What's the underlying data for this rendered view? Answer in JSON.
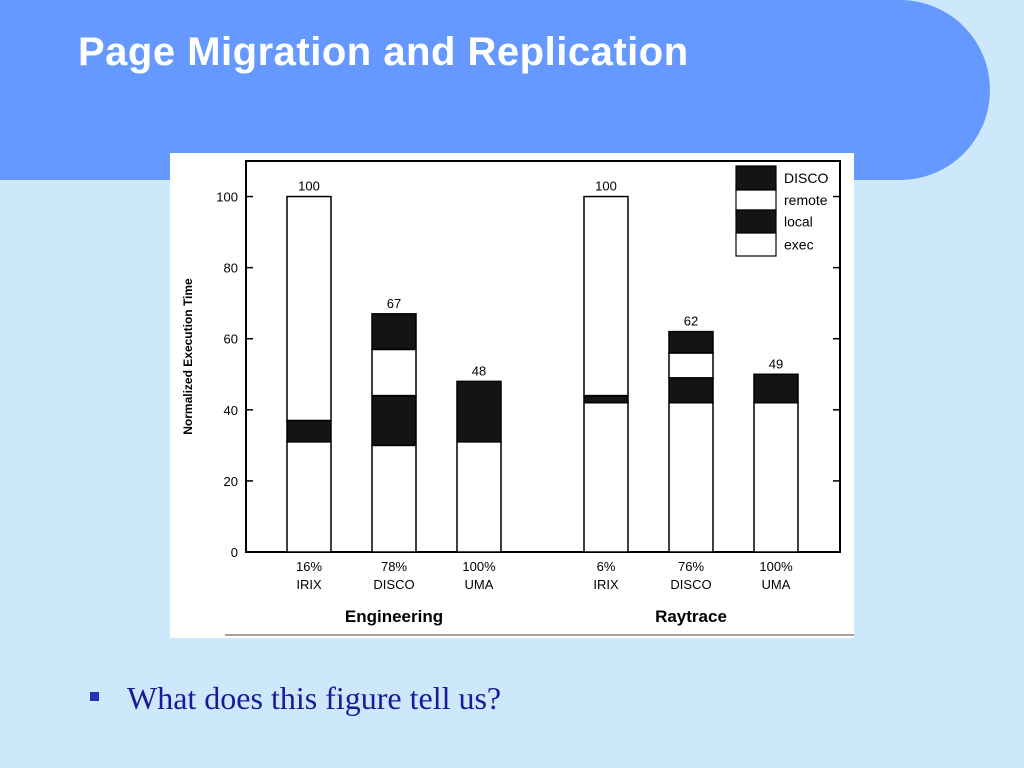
{
  "slide": {
    "title": "Page Migration and Replication",
    "bullet": "What does this figure tell us?"
  },
  "colors": {
    "banner": "#6699ff",
    "background": "#cde8fb",
    "title": "#ffffff",
    "bullet_text": "#1a1a99",
    "segment_dark": "#141414",
    "segment_light": "#ffffff"
  },
  "chart_data": {
    "type": "bar",
    "stacked": true,
    "ylabel": "Normalized Execution Time",
    "ylim": [
      0,
      110
    ],
    "yticks": [
      "0",
      "20",
      "40",
      "60",
      "80",
      "100"
    ],
    "legend": [
      "DISCO",
      "remote",
      "local",
      "exec"
    ],
    "legend_position": "top-right",
    "groups": [
      {
        "name": "Engineering",
        "bars": [
          {
            "pct": "16%",
            "config": "IRIX",
            "total_label": "100",
            "segments": {
              "exec": 31,
              "local": 6,
              "remote": 63,
              "DISCO": 0
            }
          },
          {
            "pct": "78%",
            "config": "DISCO",
            "total_label": "67",
            "segments": {
              "exec": 30,
              "local": 14,
              "remote": 13,
              "DISCO": 10
            }
          },
          {
            "pct": "100%",
            "config": "UMA",
            "total_label": "48",
            "segments": {
              "exec": 31,
              "local": 17,
              "remote": 0,
              "DISCO": 0
            }
          }
        ]
      },
      {
        "name": "Raytrace",
        "bars": [
          {
            "pct": "6%",
            "config": "IRIX",
            "total_label": "100",
            "segments": {
              "exec": 42,
              "local": 2,
              "remote": 56,
              "DISCO": 0
            }
          },
          {
            "pct": "76%",
            "config": "DISCO",
            "total_label": "62",
            "segments": {
              "exec": 42,
              "local": 7,
              "remote": 7,
              "DISCO": 6
            }
          },
          {
            "pct": "100%",
            "config": "UMA",
            "total_label": "49",
            "segments": {
              "exec": 42,
              "local": 8,
              "remote": 0,
              "DISCO": 0
            }
          }
        ]
      }
    ]
  }
}
